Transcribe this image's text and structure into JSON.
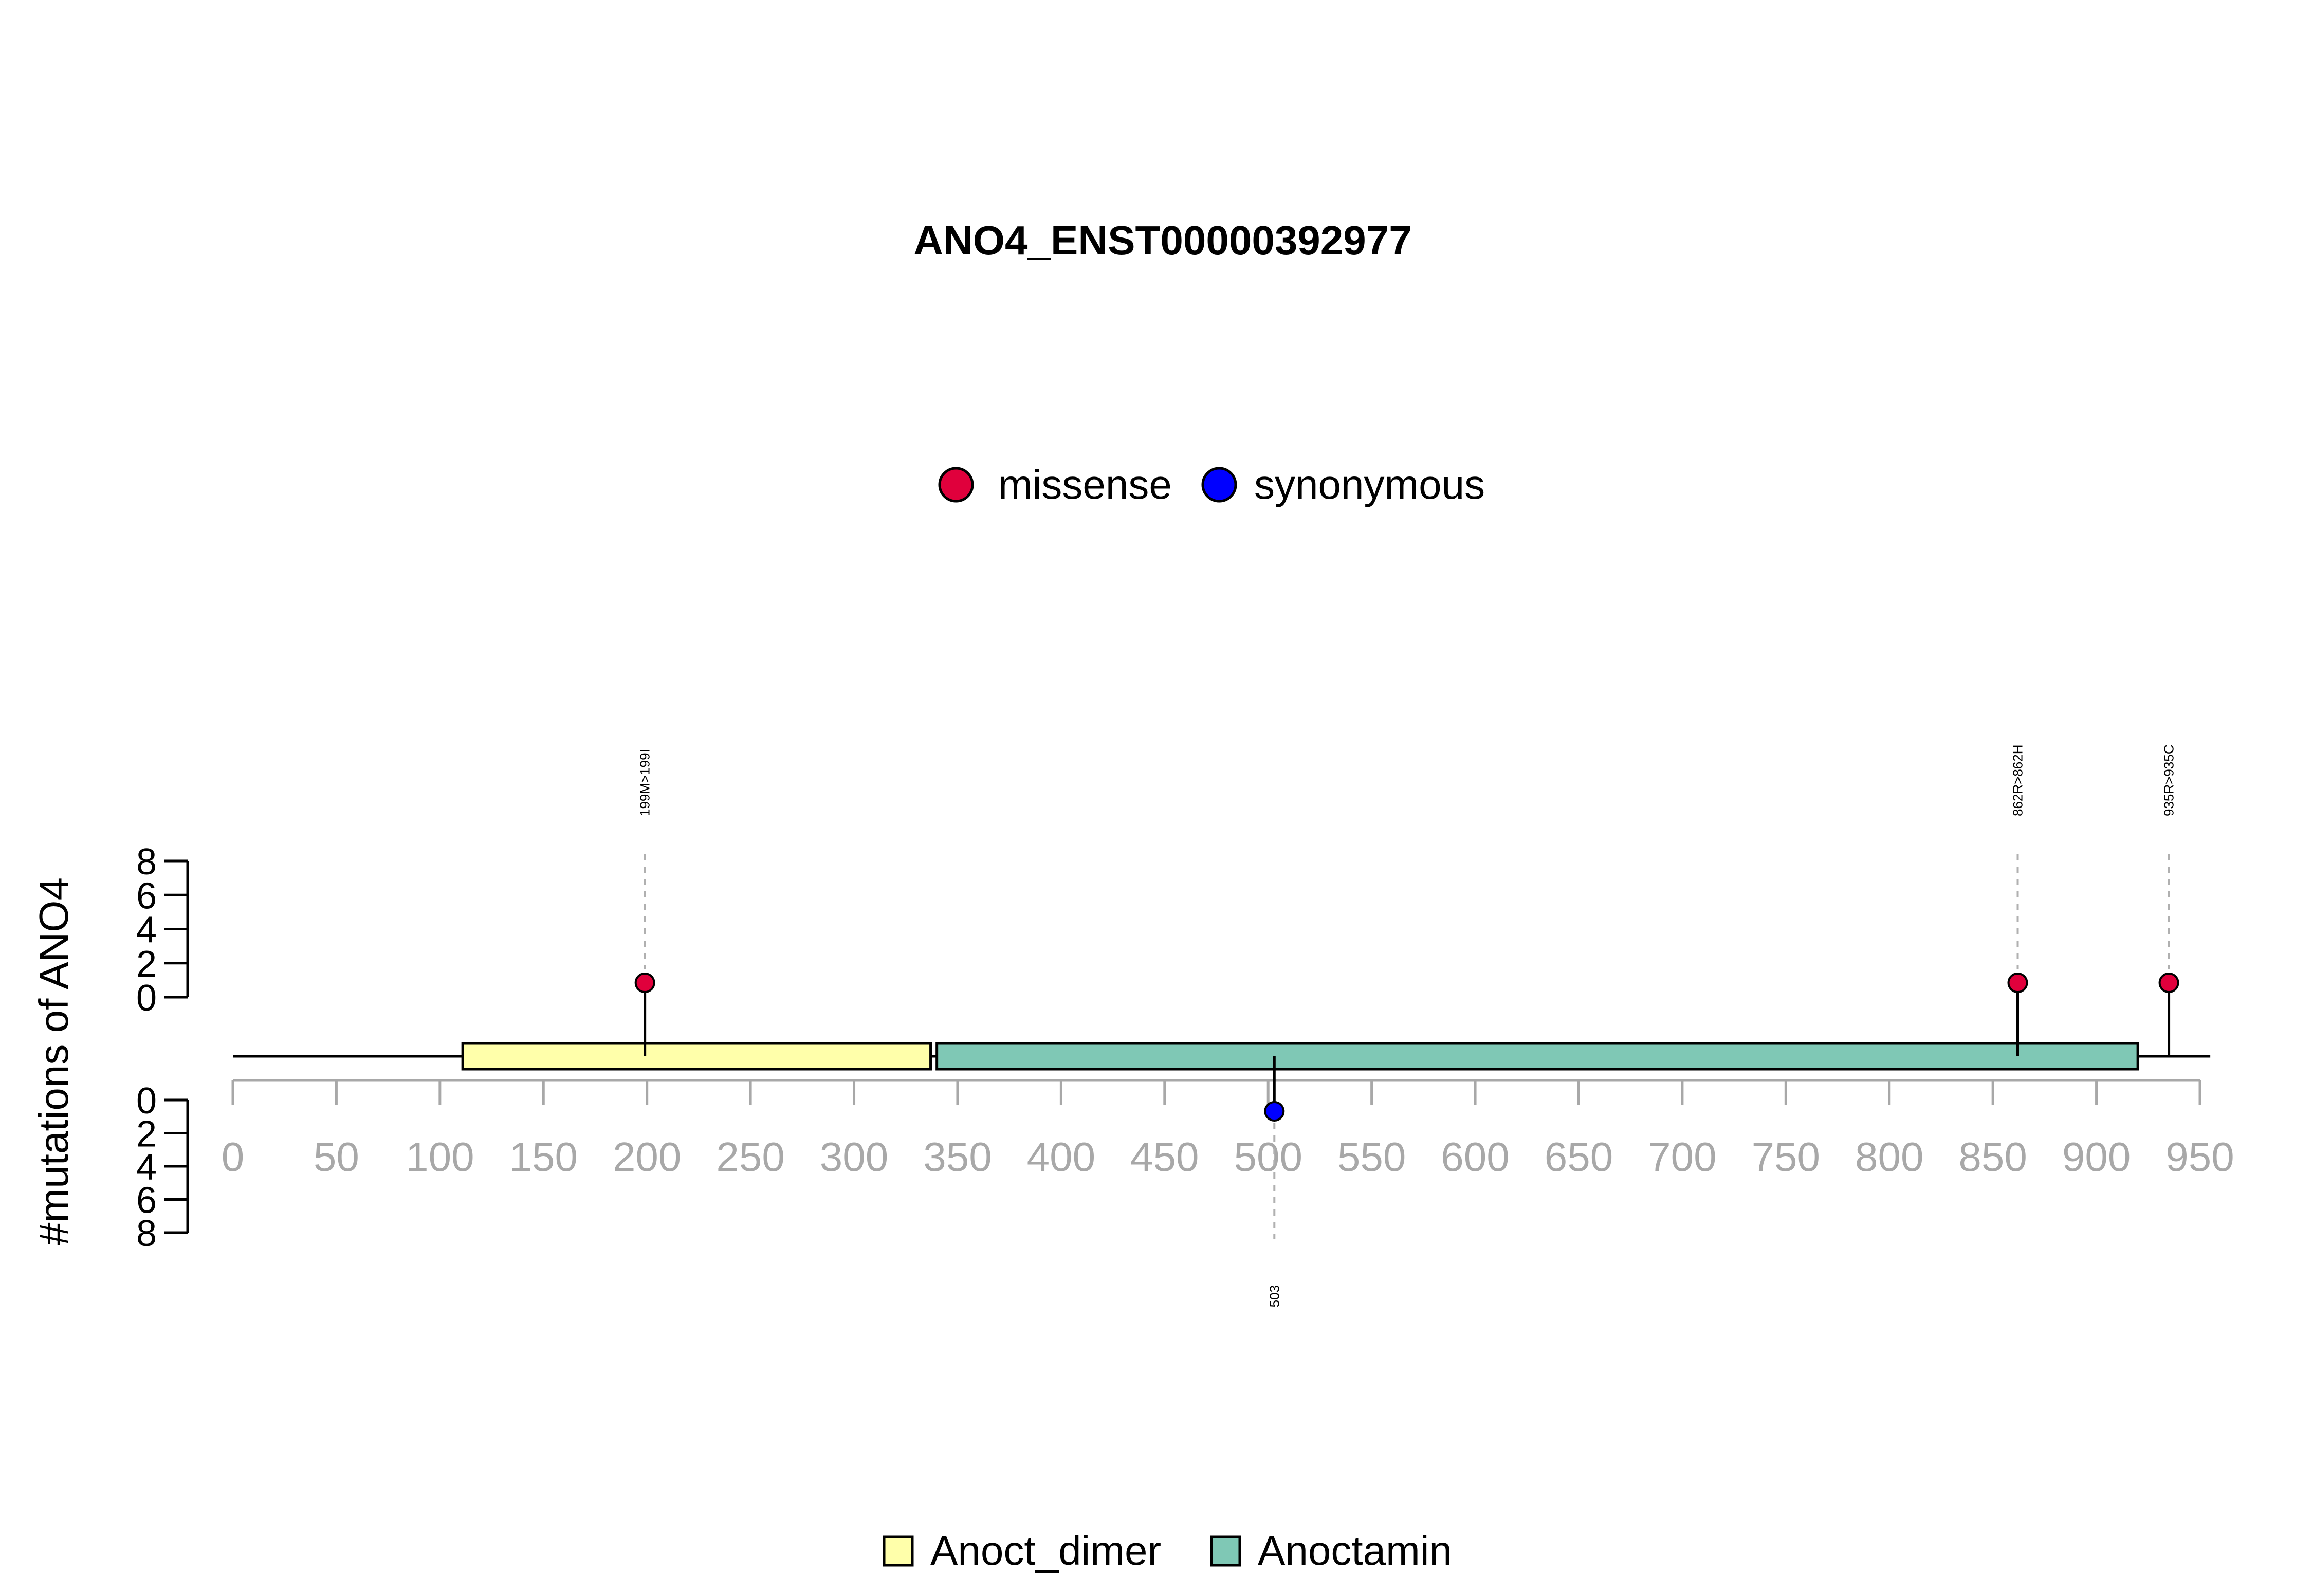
{
  "chart_data": {
    "type": "lollipop",
    "title": "ANO4_ENST00000392977",
    "ylabel": "#mutations of ANO4",
    "xlim": [
      0,
      950
    ],
    "x_ticks": [
      0,
      50,
      100,
      150,
      200,
      250,
      300,
      350,
      400,
      450,
      500,
      550,
      600,
      650,
      700,
      750,
      800,
      850,
      900,
      950
    ],
    "y_ticks_top": [
      0,
      2,
      4,
      6,
      8
    ],
    "y_ticks_bottom": [
      0,
      2,
      4,
      6,
      8
    ],
    "ylim": [
      0,
      8
    ],
    "protein_length": 955,
    "mutation_legend": [
      {
        "label": "missense",
        "color": "#e0003c"
      },
      {
        "label": "synonymous",
        "color": "#0000ff"
      }
    ],
    "domain_legend": [
      {
        "label": "Anoct_dimer",
        "color": "#ffffaa"
      },
      {
        "label": "Anoctamin",
        "color": "#7fc8b5"
      }
    ],
    "domains": [
      {
        "name": "Anoct_dimer",
        "start": 111,
        "end": 337,
        "color": "#ffffaa"
      },
      {
        "name": "Anoctamin",
        "start": 340,
        "end": 920,
        "color": "#7fc8b5"
      }
    ],
    "mutations": [
      {
        "position": 199,
        "label": "199M>199I",
        "type": "missense",
        "count": 1,
        "side": "top"
      },
      {
        "position": 862,
        "label": "862R>862H",
        "type": "missense",
        "count": 1,
        "side": "top"
      },
      {
        "position": 935,
        "label": "935R>935C",
        "type": "missense",
        "count": 1,
        "side": "top"
      },
      {
        "position": 503,
        "label": "503",
        "type": "synonymous",
        "count": 1,
        "side": "bottom"
      }
    ]
  }
}
